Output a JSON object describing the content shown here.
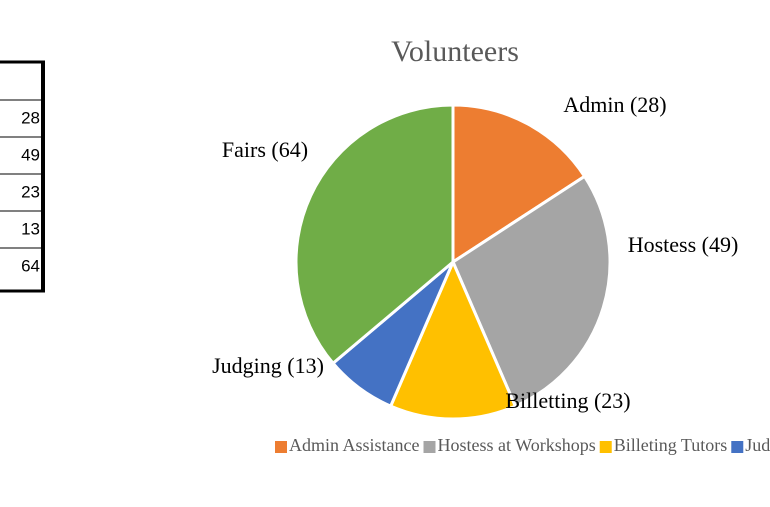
{
  "chart_data": {
    "type": "pie",
    "title": "Volunteers",
    "categories": [
      "Admin Assistance",
      "Hostess at Workshops",
      "Billeting Tutors",
      "Judgi",
      null
    ],
    "values": [
      28,
      49,
      23,
      13,
      64
    ],
    "value_labels": [
      "Admin (28)",
      "Hostess (49)",
      "Billetting (23)",
      "Judging (13)",
      "Fairs (64)"
    ],
    "colors": [
      "#ED7D31",
      "#A5A5A5",
      "#FFC000",
      "#4472C4",
      "#70AD47"
    ],
    "legend": "bottom"
  }
}
